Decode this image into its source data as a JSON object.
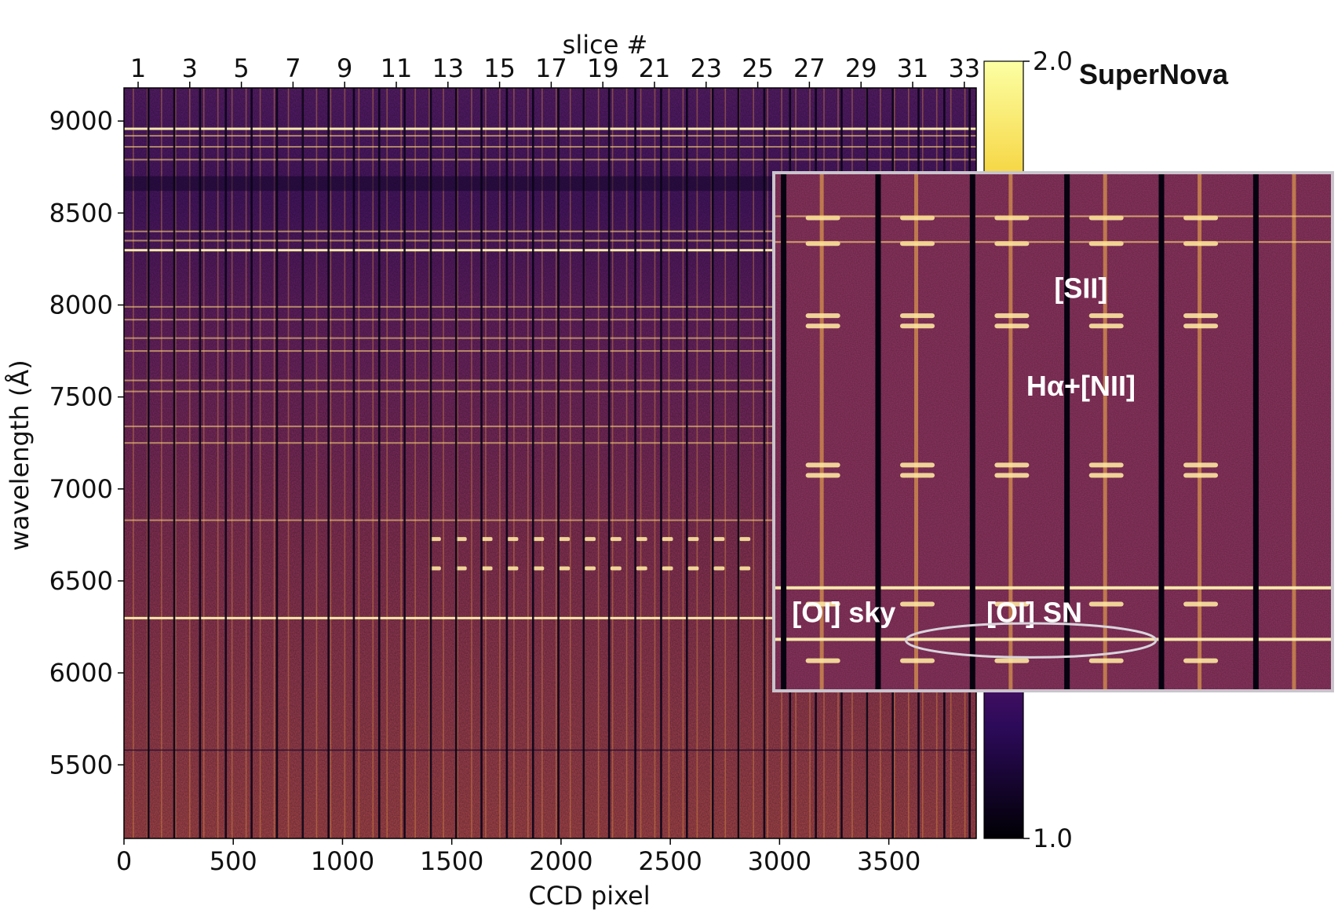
{
  "chart_data": {
    "type": "heatmap",
    "title": "SuperNova",
    "xlabel": "CCD pixel",
    "ylabel": "wavelength (Å)",
    "top_axis_label": "slice #",
    "xlim": [
      0,
      3900
    ],
    "ylim": [
      5100,
      9180
    ],
    "x_ticks": [
      0,
      500,
      1000,
      1500,
      2000,
      2500,
      3000,
      3500
    ],
    "y_ticks": [
      5500,
      6000,
      6500,
      7000,
      7500,
      8000,
      8500,
      9000
    ],
    "x_tick_labels": [
      "0",
      "500",
      "1000",
      "1500",
      "2000",
      "2500",
      "3000",
      "3500"
    ],
    "y_tick_labels": [
      "5500",
      "6000",
      "6500",
      "7000",
      "7500",
      "8000",
      "8500",
      "9000"
    ],
    "slice_tick_labels": [
      "1",
      "3",
      "5",
      "7",
      "9",
      "11",
      "13",
      "15",
      "17",
      "19",
      "21",
      "23",
      "25",
      "27",
      "29",
      "31",
      "33"
    ],
    "colorbar": {
      "min": 1.0,
      "max": 2.0,
      "tick_labels": [
        "1.0",
        "2.0"
      ],
      "colors": [
        "#000004",
        "#2c0a5a",
        "#6a176e",
        "#a92e5e",
        "#dd513a",
        "#f98e08",
        "#f6d746",
        "#fcffa4"
      ]
    },
    "slice_gap_pixels": [
      112,
      230,
      348,
      466,
      584,
      700,
      818,
      936,
      1052,
      1168,
      1284,
      1404,
      1520,
      1636,
      1752,
      1872,
      1988,
      2104,
      2220,
      2340,
      2458,
      2576,
      2694,
      2812,
      2930,
      3048,
      3166,
      3284,
      3400,
      3518,
      3636,
      3754,
      3870
    ],
    "sky_lines_angstrom": [
      8960,
      8920,
      8860,
      8790,
      8400,
      8350,
      8300,
      7990,
      7920,
      7820,
      7750,
      7590,
      7530,
      7340,
      7250,
      6830,
      6300
    ],
    "sn_line_rows_angstrom": [
      6730,
      6570
    ],
    "inset": {
      "annotations": [
        "[SII]",
        "Hα+[NII]",
        "[OI] sky",
        "[OI] SN"
      ],
      "dark_columns": [
        0.01,
        0.18,
        0.35,
        0.52,
        0.69,
        0.86
      ],
      "emission_rows": [
        0.08,
        0.13,
        0.27,
        0.29,
        0.56,
        0.58,
        0.8,
        0.83,
        0.9,
        0.94
      ]
    }
  }
}
